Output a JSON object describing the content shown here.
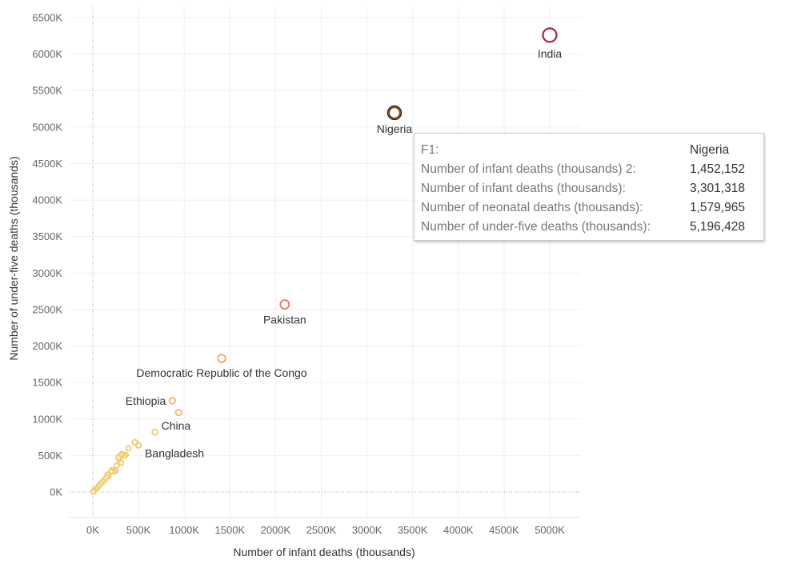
{
  "chart_data": {
    "type": "scatter",
    "xlabel": "Number of infant deaths (thousands)",
    "ylabel": "Number of under-five deaths (thousands)",
    "xlim": [
      -250,
      5250
    ],
    "ylim": [
      -350,
      6550
    ],
    "x_ticks": [
      0,
      500,
      1000,
      1500,
      2000,
      2500,
      3000,
      3500,
      4000,
      4500,
      5000
    ],
    "x_tick_labels": [
      "0K",
      "500K",
      "1000K",
      "1500K",
      "2000K",
      "2500K",
      "3000K",
      "3500K",
      "4000K",
      "4500K",
      "5000K"
    ],
    "y_ticks": [
      0,
      500,
      1000,
      1500,
      2000,
      2500,
      3000,
      3500,
      4000,
      4500,
      5000,
      5500,
      6000,
      6500
    ],
    "y_tick_labels": [
      "0K",
      "500K",
      "1000K",
      "1500K",
      "2000K",
      "2500K",
      "3000K",
      "3500K",
      "4000K",
      "4500K",
      "5000K",
      "5500K",
      "6000K",
      "6500K"
    ],
    "grid": true,
    "color_scale": [
      "#f2c96b",
      "#f0a35e",
      "#e8775a",
      "#a8204a"
    ],
    "points": [
      {
        "label": "India",
        "x": 5000,
        "y": 6260,
        "color": "#a8204a",
        "size": 8.5
      },
      {
        "label": "Nigeria",
        "x": 3301,
        "y": 5196,
        "color": "#8a4a1a",
        "size": 7.5,
        "highlighted": true
      },
      {
        "label": "Pakistan",
        "x": 2100,
        "y": 2570,
        "color": "#e8775a",
        "size": 5.5
      },
      {
        "label": "Democratic Republic of the Congo",
        "x": 1410,
        "y": 1830,
        "color": "#f0a35e",
        "size": 4.8
      },
      {
        "label": "Ethiopia",
        "x": 870,
        "y": 1250,
        "color": "#f2b860",
        "size": 3.8
      },
      {
        "label": "",
        "x": 940,
        "y": 1090,
        "color": "#f2b860",
        "size": 3.8
      },
      {
        "label": "China",
        "x": 680,
        "y": 820,
        "color": "#f2c96b",
        "size": 3.5
      },
      {
        "label": "Bangladesh",
        "x": 500,
        "y": 640,
        "color": "#f2c96b",
        "size": 3.3
      },
      {
        "label": "",
        "x": 460,
        "y": 680,
        "color": "#f2c96b",
        "size": 3.3
      },
      {
        "label": "",
        "x": 390,
        "y": 600,
        "color": "#f2c96b",
        "size": 3
      },
      {
        "label": "",
        "x": 360,
        "y": 510,
        "color": "#f2c96b",
        "size": 3
      },
      {
        "label": "",
        "x": 340,
        "y": 500,
        "color": "#f2c96b",
        "size": 3
      },
      {
        "label": "",
        "x": 320,
        "y": 520,
        "color": "#f2c96b",
        "size": 3
      },
      {
        "label": "",
        "x": 300,
        "y": 500,
        "color": "#f2c96b",
        "size": 3
      },
      {
        "label": "",
        "x": 290,
        "y": 440,
        "color": "#f2c96b",
        "size": 3
      },
      {
        "label": "",
        "x": 310,
        "y": 400,
        "color": "#f2c96b",
        "size": 3
      },
      {
        "label": "",
        "x": 280,
        "y": 470,
        "color": "#f2c96b",
        "size": 3
      },
      {
        "label": "",
        "x": 260,
        "y": 360,
        "color": "#f2c96b",
        "size": 3
      },
      {
        "label": "",
        "x": 250,
        "y": 290,
        "color": "#f2c96b",
        "size": 3
      },
      {
        "label": "",
        "x": 230,
        "y": 280,
        "color": "#f2c96b",
        "size": 3
      },
      {
        "label": "",
        "x": 210,
        "y": 300,
        "color": "#f2c96b",
        "size": 3
      },
      {
        "label": "",
        "x": 200,
        "y": 280,
        "color": "#f2c96b",
        "size": 3
      },
      {
        "label": "",
        "x": 170,
        "y": 220,
        "color": "#f2c96b",
        "size": 3
      },
      {
        "label": "",
        "x": 160,
        "y": 240,
        "color": "#f2c96b",
        "size": 3
      },
      {
        "label": "",
        "x": 150,
        "y": 200,
        "color": "#f2c96b",
        "size": 3
      },
      {
        "label": "",
        "x": 130,
        "y": 170,
        "color": "#f2c96b",
        "size": 3
      },
      {
        "label": "",
        "x": 110,
        "y": 140,
        "color": "#f2c96b",
        "size": 3
      },
      {
        "label": "",
        "x": 90,
        "y": 120,
        "color": "#f2c96b",
        "size": 3
      },
      {
        "label": "",
        "x": 70,
        "y": 90,
        "color": "#f2c96b",
        "size": 3
      },
      {
        "label": "",
        "x": 50,
        "y": 60,
        "color": "#f2c96b",
        "size": 3
      },
      {
        "label": "",
        "x": 30,
        "y": 40,
        "color": "#f2c96b",
        "size": 3
      },
      {
        "label": "",
        "x": 15,
        "y": 20,
        "color": "#f2c96b",
        "size": 3
      },
      {
        "label": "",
        "x": 5,
        "y": 5,
        "color": "#f2c96b",
        "size": 3
      }
    ]
  },
  "tooltip": {
    "rows": [
      {
        "key": "F1:",
        "value": "Nigeria"
      },
      {
        "key": "Number of infant deaths (thousands) 2:",
        "value": "1,452,152"
      },
      {
        "key": "Number of infant deaths (thousands):",
        "value": "3,301,318"
      },
      {
        "key": "Number of neonatal deaths (thousands):",
        "value": "1,579,965"
      },
      {
        "key": "Number of under-five deaths (thousands):",
        "value": "5,196,428"
      }
    ]
  }
}
